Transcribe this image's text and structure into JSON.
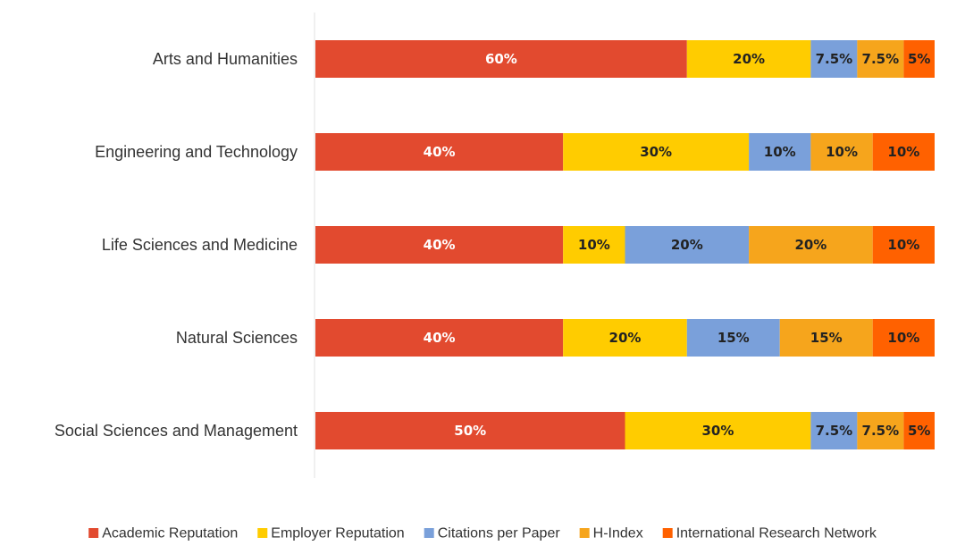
{
  "chart_data": {
    "type": "bar",
    "orientation": "horizontal",
    "stacked": true,
    "title": "",
    "xlabel": "",
    "ylabel": "",
    "xlim": [
      0,
      100
    ],
    "grid": false,
    "legend_position": "bottom",
    "categories": [
      "Arts and Humanities",
      "Engineering and Technology",
      "Life Sciences and Medicine",
      "Natural Sciences",
      "Social Sciences and Management"
    ],
    "series": [
      {
        "name": "Academic Reputation",
        "color": "#e24a2f",
        "text_color": "#ffffff",
        "values": [
          60,
          40,
          40,
          40,
          50
        ],
        "labels": [
          "60%",
          "40%",
          "40%",
          "40%",
          "50%"
        ]
      },
      {
        "name": "Employer Reputation",
        "color": "#ffcc00",
        "text_color": "#222222",
        "values": [
          20,
          30,
          10,
          20,
          30
        ],
        "labels": [
          "20%",
          "30%",
          "10%",
          "20%",
          "30%"
        ]
      },
      {
        "name": "Citations per Paper",
        "color": "#7aa0da",
        "text_color": "#222222",
        "values": [
          7.5,
          10,
          20,
          15,
          7.5
        ],
        "labels": [
          "7.5%",
          "10%",
          "20%",
          "15%",
          "7.5%"
        ]
      },
      {
        "name": "H-Index",
        "color": "#f6a51c",
        "text_color": "#222222",
        "values": [
          7.5,
          10,
          20,
          15,
          7.5
        ],
        "labels": [
          "7.5%",
          "10%",
          "20%",
          "15%",
          "7.5%"
        ]
      },
      {
        "name": "International Research Network",
        "color": "#ff6100",
        "text_color": "#222222",
        "values": [
          5,
          10,
          10,
          10,
          5
        ],
        "labels": [
          "5%",
          "10%",
          "10%",
          "10%",
          "5%"
        ]
      }
    ]
  }
}
